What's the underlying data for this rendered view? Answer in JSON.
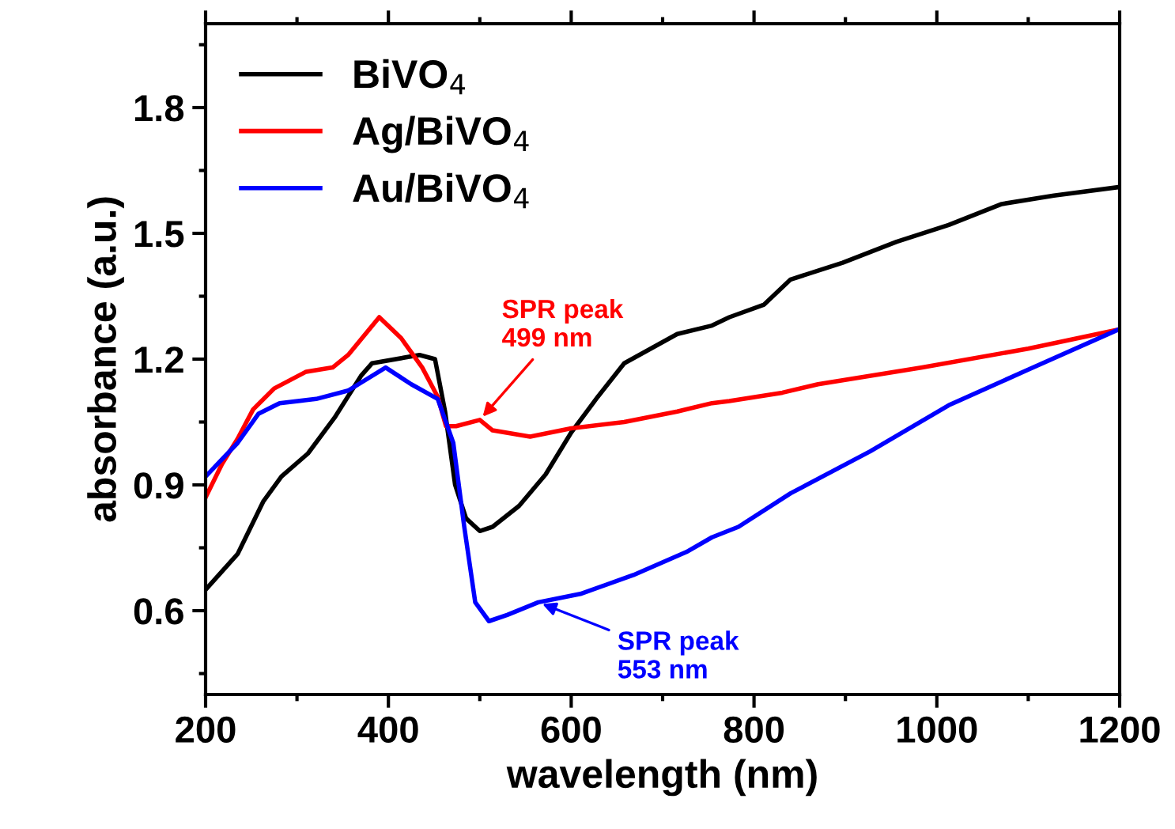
{
  "chart_data": {
    "type": "line",
    "xlabel": "wavelength (nm)",
    "ylabel": "absorbance (a.u.)",
    "xlim": [
      200,
      1200
    ],
    "ylim": [
      0.4,
      2.0
    ],
    "xticks": [
      200,
      400,
      600,
      800,
      1000,
      1200
    ],
    "yticks": [
      0.6,
      0.9,
      1.2,
      1.5,
      1.8
    ],
    "legend": "top left",
    "grid": false,
    "marker": "none",
    "line_style": "solid",
    "series": [
      {
        "name": "BiVO$_{4}$",
        "color": "#000000",
        "x": [
          200,
          235,
          263,
          283,
          312,
          341,
          370,
          382,
          434,
          451,
          462,
          473,
          485,
          500,
          514,
          543,
          572,
          600,
          629,
          658,
          716,
          754,
          773,
          811,
          840,
          897,
          956,
          1013,
          1071,
          1128,
          1198
        ],
        "values": [
          0.65,
          0.735,
          0.86,
          0.92,
          0.975,
          1.06,
          1.16,
          1.19,
          1.21,
          1.2,
          1.075,
          0.9,
          0.82,
          0.79,
          0.8,
          0.85,
          0.925,
          1.025,
          1.11,
          1.19,
          1.26,
          1.28,
          1.3,
          1.33,
          1.39,
          1.43,
          1.48,
          1.52,
          1.57,
          1.59,
          1.61
        ]
      },
      {
        "name": "Ag/BiVO$_{4}$",
        "color": "#ff0000",
        "x": [
          200,
          218,
          235,
          252,
          275,
          310,
          339,
          356,
          390,
          414,
          437,
          454,
          463,
          474,
          500,
          514,
          555,
          600,
          658,
          716,
          754,
          773,
          831,
          870,
          984,
          1100,
          1198
        ],
        "values": [
          0.87,
          0.95,
          1.01,
          1.08,
          1.13,
          1.17,
          1.18,
          1.21,
          1.3,
          1.25,
          1.18,
          1.11,
          1.04,
          1.04,
          1.055,
          1.03,
          1.015,
          1.035,
          1.05,
          1.075,
          1.095,
          1.1,
          1.12,
          1.14,
          1.18,
          1.225,
          1.27
        ]
      },
      {
        "name": "Au/BiVO$_{4}$",
        "color": "#0000ff",
        "x": [
          200,
          235,
          258,
          281,
          321,
          356,
          397,
          425,
          454,
          471,
          483,
          495,
          510,
          530,
          564,
          610,
          668,
          726,
          754,
          783,
          840,
          927,
          1013,
          1100,
          1198
        ],
        "values": [
          0.92,
          1.0,
          1.07,
          1.095,
          1.105,
          1.125,
          1.18,
          1.14,
          1.105,
          1.0,
          0.8,
          0.62,
          0.575,
          0.59,
          0.62,
          0.64,
          0.685,
          0.74,
          0.775,
          0.8,
          0.88,
          0.98,
          1.09,
          1.175,
          1.27
        ]
      }
    ],
    "annotations": [
      {
        "text": "SPR peak\n499 nm",
        "x": 500,
        "y": 1.055
      },
      {
        "text": "SPR peak\n553 nm",
        "x": 564,
        "y": 0.62
      }
    ]
  }
}
